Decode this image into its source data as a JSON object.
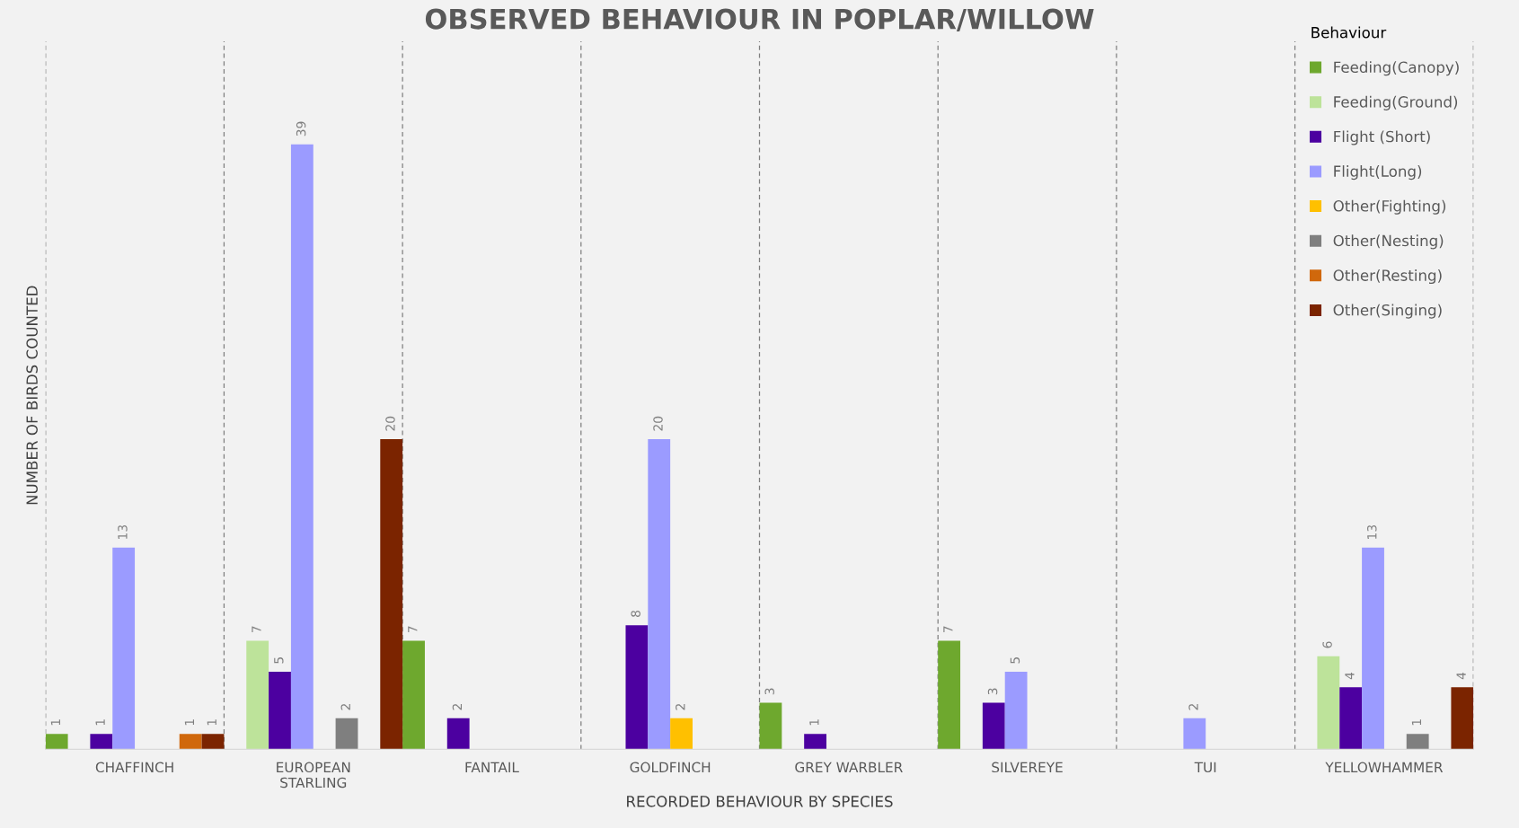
{
  "chart_data": {
    "type": "bar",
    "title": "OBSERVED BEHAVIOUR IN POPLAR/WILLOW",
    "xlabel": "RECORDED BEHAVIOUR BY SPECIES",
    "ylabel": "NUMBER OF BIRDS COUNTED",
    "legend_title": "Behaviour",
    "legend": "top right",
    "grid": "x",
    "data_labels": true,
    "categories": [
      "CHAFFINCH",
      "EUROPEAN\nSTARLING",
      "FANTAIL",
      "GOLDFINCH",
      "GREY WARBLER",
      "SILVEREYE",
      "TUI",
      "YELLOWHAMMER"
    ],
    "series": [
      {
        "name": "Feeding(Canopy)",
        "color": "#6ea82e",
        "values": [
          1,
          null,
          7,
          null,
          3,
          7,
          null,
          null
        ]
      },
      {
        "name": "Feeding(Ground)",
        "color": "#bde39a",
        "values": [
          null,
          7,
          null,
          null,
          null,
          null,
          null,
          6
        ]
      },
      {
        "name": "Flight (Short)",
        "color": "#4c00a0",
        "values": [
          1,
          5,
          2,
          8,
          1,
          3,
          null,
          4
        ]
      },
      {
        "name": "Flight(Long)",
        "color": "#9b9bff",
        "values": [
          13,
          39,
          null,
          20,
          null,
          5,
          2,
          13
        ]
      },
      {
        "name": "Other(Fighting)",
        "color": "#ffc000",
        "values": [
          null,
          null,
          null,
          2,
          null,
          null,
          null,
          null
        ]
      },
      {
        "name": "Other(Nesting)",
        "color": "#7f7f7f",
        "values": [
          null,
          2,
          null,
          null,
          null,
          null,
          null,
          1
        ]
      },
      {
        "name": "Other(Resting)",
        "color": "#d0680c",
        "values": [
          1,
          null,
          null,
          null,
          null,
          null,
          null,
          null
        ]
      },
      {
        "name": "Other(Singing)",
        "color": "#7b2400",
        "values": [
          1,
          20,
          null,
          null,
          null,
          null,
          null,
          4
        ]
      }
    ]
  }
}
